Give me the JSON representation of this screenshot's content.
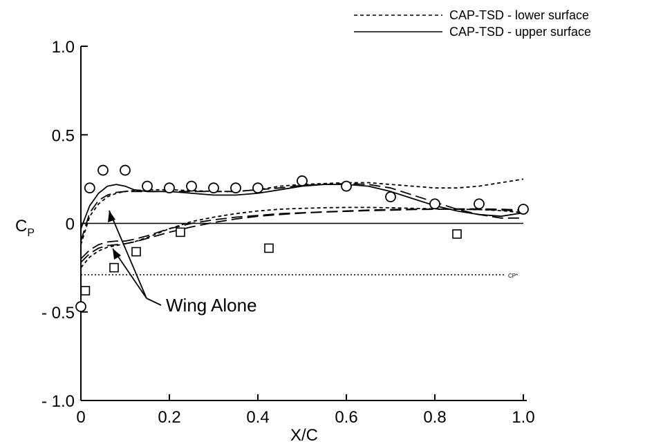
{
  "chart_data": {
    "type": "line",
    "xlabel": "X/C",
    "ylabel": "C",
    "ylabel_sub": "P",
    "xlim": [
      0,
      1.0
    ],
    "ylim": [
      -1.0,
      1.0
    ],
    "x_ticks": [
      0,
      0.2,
      0.4,
      0.6,
      0.8,
      1.0
    ],
    "x_tick_labels": [
      "0",
      "0.2",
      "0.4",
      "0.6",
      "0.8",
      "1.0"
    ],
    "y_ticks": [
      1.0,
      0.5,
      0,
      -0.5,
      -1.0
    ],
    "y_tick_labels": [
      "1.0",
      "0.5",
      "0",
      "- 0.5",
      "- 1.0"
    ],
    "grid": false,
    "legend_position": "top-right",
    "legend": [
      {
        "label": "CAP-TSD - lower surface",
        "style": "short-dash"
      },
      {
        "label": "CAP-TSD - upper surface",
        "style": "solid"
      }
    ],
    "reference_lines": [
      {
        "y": 0,
        "style": "solid"
      },
      {
        "y": -0.29,
        "style": "dotted",
        "label": "CP*"
      }
    ],
    "annotation": {
      "text": "Wing Alone"
    },
    "series": [
      {
        "style": "solid",
        "x": [
          0,
          0.02,
          0.04,
          0.06,
          0.08,
          0.1,
          0.12,
          0.15,
          0.2,
          0.25,
          0.3,
          0.35,
          0.4,
          0.45,
          0.5,
          0.55,
          0.6,
          0.65,
          0.7,
          0.75,
          0.8,
          0.85,
          0.9,
          0.95,
          1.0
        ],
        "y": [
          -0.03,
          0.1,
          0.17,
          0.21,
          0.22,
          0.21,
          0.19,
          0.18,
          0.18,
          0.17,
          0.16,
          0.16,
          0.17,
          0.19,
          0.21,
          0.22,
          0.22,
          0.21,
          0.18,
          0.14,
          0.1,
          0.07,
          0.05,
          0.04,
          0.06
        ]
      },
      {
        "style": "short-dash",
        "x": [
          0,
          0.02,
          0.04,
          0.06,
          0.08,
          0.1,
          0.12,
          0.15,
          0.2,
          0.25,
          0.3,
          0.35,
          0.4,
          0.45,
          0.5,
          0.55,
          0.6,
          0.65,
          0.7,
          0.75,
          0.8,
          0.85,
          0.9,
          0.95,
          1.0
        ],
        "y": [
          -0.12,
          0.04,
          0.11,
          0.15,
          0.17,
          0.18,
          0.185,
          0.19,
          0.19,
          0.185,
          0.18,
          0.18,
          0.19,
          0.21,
          0.22,
          0.225,
          0.23,
          0.23,
          0.22,
          0.21,
          0.2,
          0.2,
          0.21,
          0.23,
          0.25
        ]
      },
      {
        "style": "long-dash",
        "x": [
          0,
          0.02,
          0.04,
          0.06,
          0.08,
          0.1,
          0.12,
          0.15,
          0.2,
          0.25,
          0.3,
          0.35,
          0.4,
          0.45,
          0.5,
          0.55,
          0.6,
          0.65,
          0.7,
          0.75,
          0.8,
          0.85,
          0.9,
          0.95,
          1.0
        ],
        "y": [
          -0.1,
          0.06,
          0.13,
          0.16,
          0.175,
          0.18,
          0.18,
          0.18,
          0.18,
          0.18,
          0.18,
          0.18,
          0.19,
          0.2,
          0.215,
          0.22,
          0.225,
          0.22,
          0.2,
          0.16,
          0.12,
          0.08,
          0.05,
          0.03,
          0.03
        ]
      },
      {
        "style": "long-dash",
        "x": [
          0,
          0.02,
          0.04,
          0.06,
          0.08,
          0.1,
          0.12,
          0.15,
          0.2,
          0.25,
          0.3,
          0.35,
          0.4,
          0.45,
          0.5,
          0.55,
          0.6,
          0.65,
          0.7,
          0.75,
          0.8,
          0.85,
          0.9,
          0.95,
          1.0
        ],
        "y": [
          -0.2,
          -0.15,
          -0.12,
          -0.105,
          -0.1,
          -0.1,
          -0.09,
          -0.07,
          -0.03,
          0.0,
          0.02,
          0.035,
          0.045,
          0.055,
          0.06,
          0.065,
          0.07,
          0.075,
          0.078,
          0.08,
          0.08,
          0.08,
          0.078,
          0.075,
          0.07
        ]
      },
      {
        "style": "short-dash",
        "x": [
          0,
          0.02,
          0.04,
          0.06,
          0.08,
          0.1,
          0.12,
          0.15,
          0.2,
          0.25,
          0.3,
          0.35,
          0.4,
          0.45,
          0.5,
          0.55,
          0.6,
          0.65,
          0.7,
          0.75,
          0.8,
          0.85,
          0.9,
          0.95,
          1.0
        ],
        "y": [
          -0.25,
          -0.19,
          -0.155,
          -0.135,
          -0.125,
          -0.115,
          -0.105,
          -0.08,
          -0.03,
          0.01,
          0.035,
          0.055,
          0.07,
          0.08,
          0.085,
          0.088,
          0.09,
          0.09,
          0.088,
          0.085,
          0.082,
          0.08,
          0.078,
          0.072,
          0.06
        ]
      },
      {
        "style": "long-dash",
        "x": [
          0,
          0.02,
          0.04,
          0.06,
          0.08,
          0.1,
          0.12,
          0.15,
          0.2,
          0.25,
          0.3,
          0.35,
          0.4,
          0.45,
          0.5,
          0.55,
          0.6,
          0.65,
          0.7,
          0.75,
          0.8,
          0.85,
          0.9,
          0.95,
          1.0
        ],
        "y": [
          -0.22,
          -0.17,
          -0.14,
          -0.125,
          -0.12,
          -0.115,
          -0.105,
          -0.085,
          -0.05,
          -0.02,
          0.005,
          0.025,
          0.04,
          0.05,
          0.058,
          0.064,
          0.068,
          0.072,
          0.075,
          0.078,
          0.08,
          0.082,
          0.082,
          0.08,
          0.075
        ]
      }
    ],
    "points_circles": [
      {
        "x": 0.0,
        "y": -0.47
      },
      {
        "x": 0.02,
        "y": 0.2
      },
      {
        "x": 0.05,
        "y": 0.3
      },
      {
        "x": 0.1,
        "y": 0.3
      },
      {
        "x": 0.15,
        "y": 0.21
      },
      {
        "x": 0.2,
        "y": 0.2
      },
      {
        "x": 0.25,
        "y": 0.21
      },
      {
        "x": 0.3,
        "y": 0.2
      },
      {
        "x": 0.35,
        "y": 0.2
      },
      {
        "x": 0.4,
        "y": 0.2
      },
      {
        "x": 0.5,
        "y": 0.24
      },
      {
        "x": 0.6,
        "y": 0.21
      },
      {
        "x": 0.7,
        "y": 0.15
      },
      {
        "x": 0.8,
        "y": 0.11
      },
      {
        "x": 0.9,
        "y": 0.11
      },
      {
        "x": 1.0,
        "y": 0.08
      }
    ],
    "points_squares": [
      {
        "x": 0.01,
        "y": -0.38
      },
      {
        "x": 0.075,
        "y": -0.25
      },
      {
        "x": 0.125,
        "y": -0.16
      },
      {
        "x": 0.225,
        "y": -0.05
      },
      {
        "x": 0.425,
        "y": -0.14
      },
      {
        "x": 0.85,
        "y": -0.06
      }
    ]
  }
}
